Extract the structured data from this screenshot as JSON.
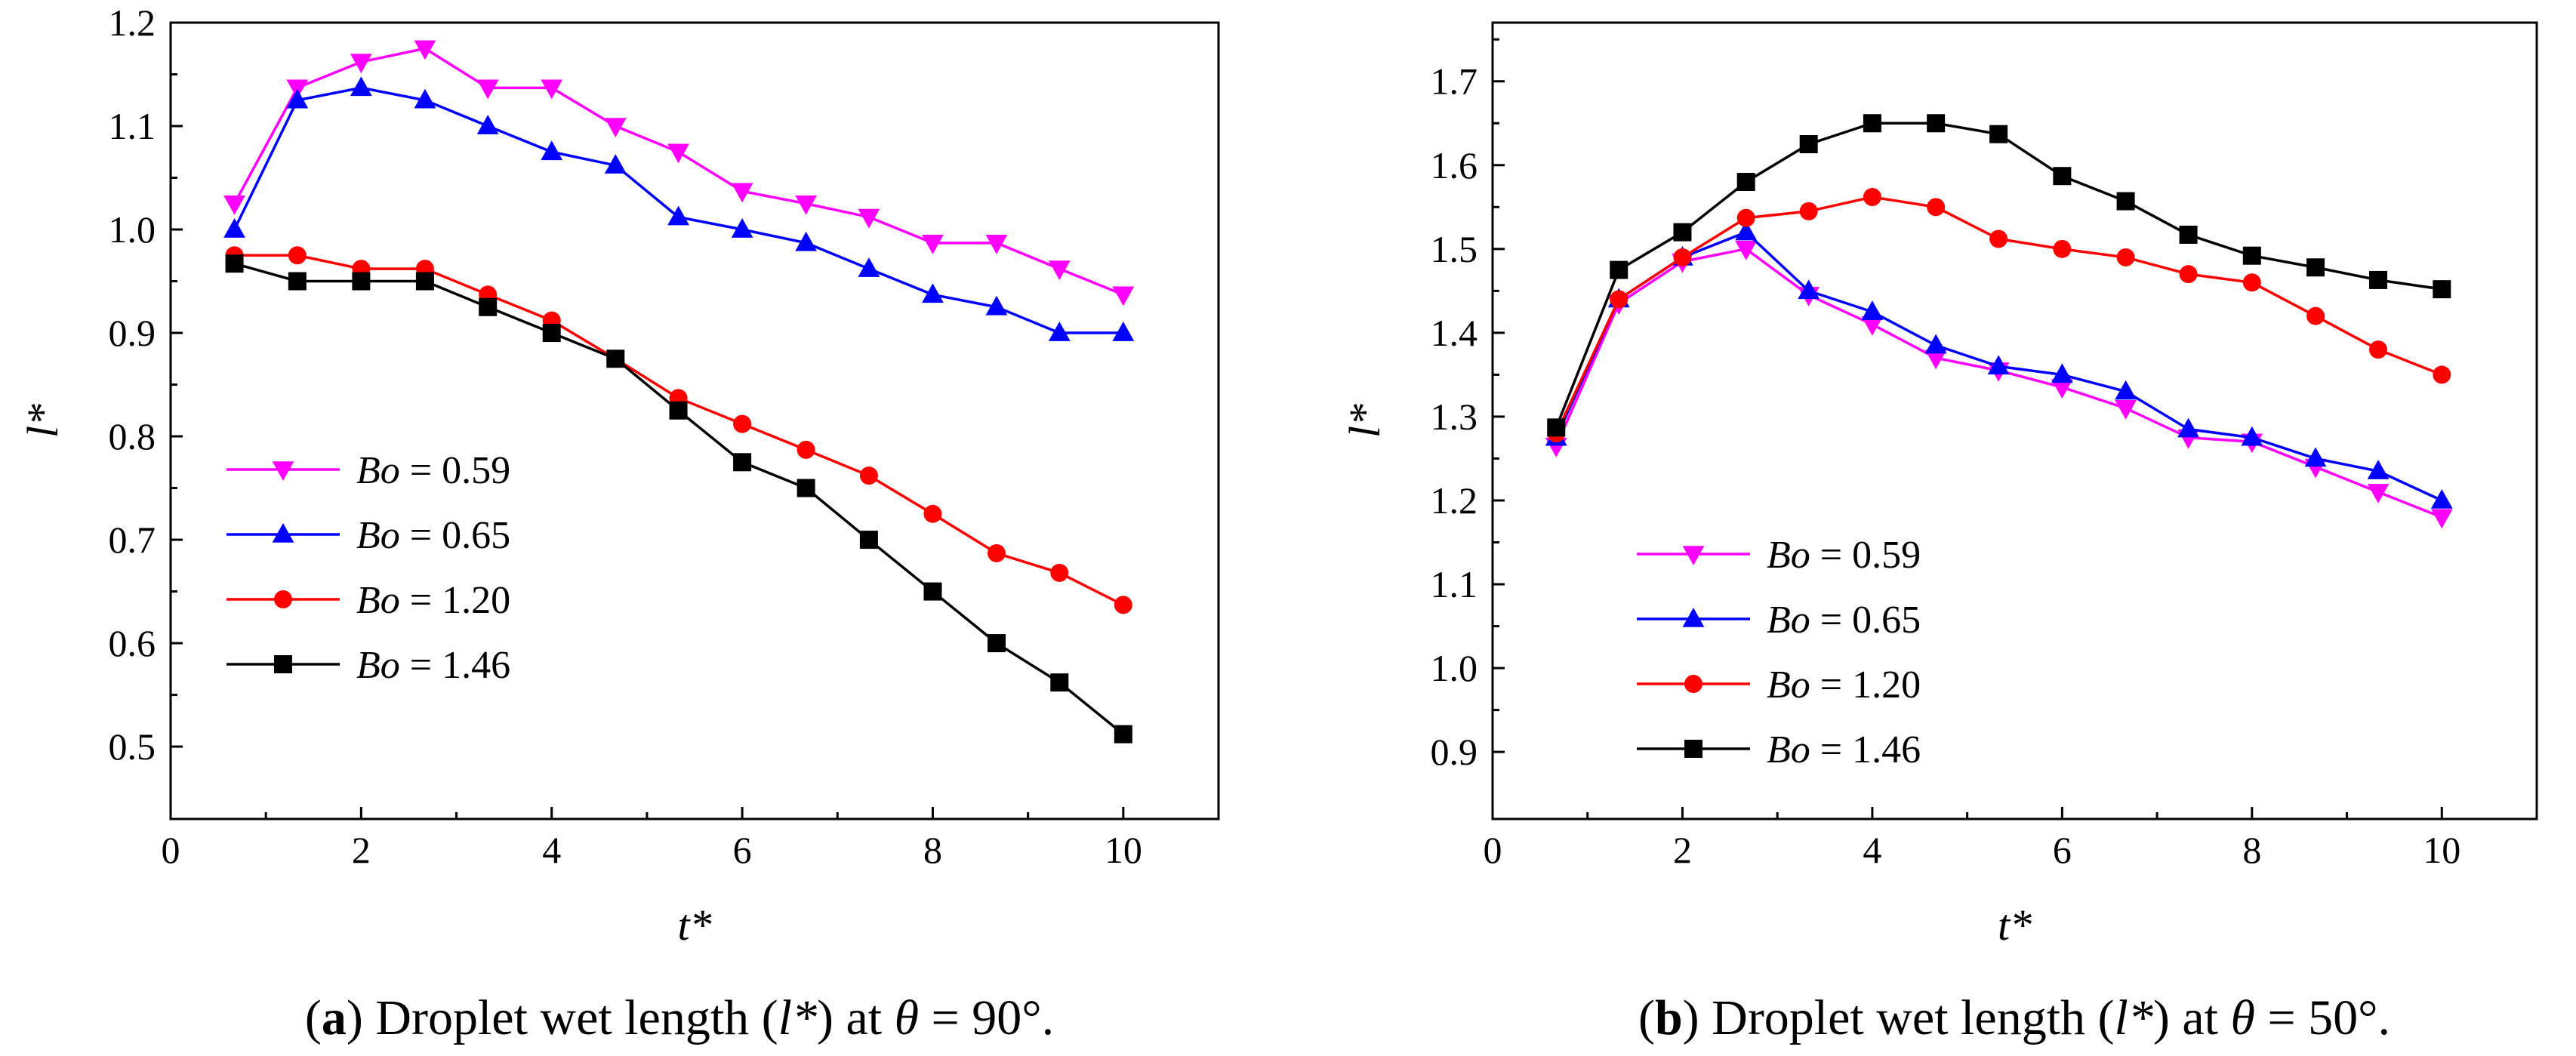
{
  "chart_data": [
    {
      "type": "line",
      "id": "a",
      "caption": {
        "letter": "a",
        "prefix": "Droplet wet length (",
        "var": "l*",
        "mid": ") at ",
        "theta": "θ",
        "rest": " = 90°."
      },
      "xlabel": "t*",
      "ylabel": "l*",
      "xlim": [
        0,
        11
      ],
      "ylim": [
        0.43,
        1.2
      ],
      "xticks": [
        0,
        2,
        4,
        6,
        8,
        10
      ],
      "yticks": [
        0.5,
        0.6,
        0.7,
        0.8,
        0.9,
        1.0,
        1.1,
        1.2
      ],
      "ytick_labels": [
        "0.5",
        "0.6",
        "0.7",
        "0.8",
        "0.9",
        "1.0",
        "1.1",
        "1.2"
      ],
      "legend_position": "bottom-left",
      "series": [
        {
          "name": "Bo = 0.59",
          "name_var": "Bo",
          "name_value": " = 0.59",
          "color": "#ff00ff",
          "marker": "triangle-down",
          "x": [
            0.67,
            1.33,
            2.0,
            2.67,
            3.33,
            4.0,
            4.67,
            5.33,
            6.0,
            6.67,
            7.33,
            8.0,
            8.67,
            9.33,
            10.0
          ],
          "y": [
            1.025,
            1.137,
            1.162,
            1.175,
            1.137,
            1.137,
            1.1,
            1.075,
            1.037,
            1.025,
            1.012,
            0.987,
            0.987,
            0.962,
            0.937
          ]
        },
        {
          "name": "Bo = 0.65",
          "name_var": "Bo",
          "name_value": " = 0.65",
          "color": "#0000ff",
          "marker": "triangle-up",
          "x": [
            0.67,
            1.33,
            2.0,
            2.67,
            3.33,
            4.0,
            4.67,
            5.33,
            6.0,
            6.67,
            7.33,
            8.0,
            8.67,
            9.33,
            10.0
          ],
          "y": [
            1.0,
            1.125,
            1.137,
            1.125,
            1.1,
            1.075,
            1.062,
            1.012,
            1.0,
            0.987,
            0.962,
            0.937,
            0.925,
            0.9,
            0.9
          ]
        },
        {
          "name": "Bo = 1.20",
          "name_var": "Bo",
          "name_value": " = 1.20",
          "color": "#ff0000",
          "marker": "circle",
          "x": [
            0.67,
            1.33,
            2.0,
            2.67,
            3.33,
            4.0,
            4.67,
            5.33,
            6.0,
            6.67,
            7.33,
            8.0,
            8.67,
            9.33,
            10.0
          ],
          "y": [
            0.975,
            0.975,
            0.962,
            0.962,
            0.937,
            0.912,
            0.875,
            0.837,
            0.812,
            0.787,
            0.762,
            0.725,
            0.687,
            0.668,
            0.637
          ]
        },
        {
          "name": "Bo = 1.46",
          "name_var": "Bo",
          "name_value": " = 1.46",
          "color": "#000000",
          "marker": "square",
          "x": [
            0.67,
            1.33,
            2.0,
            2.67,
            3.33,
            4.0,
            4.67,
            5.33,
            6.0,
            6.67,
            7.33,
            8.0,
            8.67,
            9.33,
            10.0
          ],
          "y": [
            0.967,
            0.95,
            0.95,
            0.95,
            0.925,
            0.9,
            0.875,
            0.825,
            0.775,
            0.75,
            0.7,
            0.65,
            0.6,
            0.562,
            0.512
          ]
        }
      ]
    },
    {
      "type": "line",
      "id": "b",
      "caption": {
        "letter": "b",
        "prefix": "Droplet wet length (",
        "var": "l*",
        "mid": ") at ",
        "theta": "θ",
        "rest": " = 50°."
      },
      "xlabel": "t*",
      "ylabel": "l*",
      "xlim": [
        0,
        11
      ],
      "ylim": [
        0.82,
        1.77
      ],
      "xticks": [
        0,
        2,
        4,
        6,
        8,
        10
      ],
      "yticks": [
        0.9,
        1.0,
        1.1,
        1.2,
        1.3,
        1.4,
        1.5,
        1.6,
        1.7
      ],
      "ytick_labels": [
        "0.9",
        "1.0",
        "1.1",
        "1.2",
        "1.3",
        "1.4",
        "1.5",
        "1.6",
        "1.7"
      ],
      "legend_position": "bottom-left",
      "series": [
        {
          "name": "Bo = 0.59",
          "name_var": "Bo",
          "name_value": " = 0.59",
          "color": "#ff00ff",
          "marker": "triangle-down",
          "x": [
            0.67,
            1.33,
            2.0,
            2.67,
            3.33,
            4.0,
            4.67,
            5.33,
            6.0,
            6.67,
            7.33,
            8.0,
            8.67,
            9.33,
            10.0
          ],
          "y": [
            1.265,
            1.435,
            1.485,
            1.5,
            1.445,
            1.41,
            1.37,
            1.355,
            1.335,
            1.31,
            1.275,
            1.27,
            1.24,
            1.21,
            1.18
          ]
        },
        {
          "name": "Bo = 0.65",
          "name_var": "Bo",
          "name_value": " = 0.65",
          "color": "#0000ff",
          "marker": "triangle-up",
          "x": [
            0.67,
            1.33,
            2.0,
            2.67,
            3.33,
            4.0,
            4.67,
            5.33,
            6.0,
            6.67,
            7.33,
            8.0,
            8.67,
            9.33,
            10.0
          ],
          "y": [
            1.275,
            1.44,
            1.49,
            1.52,
            1.45,
            1.425,
            1.385,
            1.36,
            1.35,
            1.33,
            1.285,
            1.275,
            1.25,
            1.235,
            1.2
          ]
        },
        {
          "name": "Bo = 1.20",
          "name_var": "Bo",
          "name_value": " = 1.20",
          "color": "#ff0000",
          "marker": "circle",
          "x": [
            0.67,
            1.33,
            2.0,
            2.67,
            3.33,
            4.0,
            4.67,
            5.33,
            6.0,
            6.67,
            7.33,
            8.0,
            8.67,
            9.33,
            10.0
          ],
          "y": [
            1.28,
            1.44,
            1.49,
            1.537,
            1.545,
            1.562,
            1.55,
            1.512,
            1.5,
            1.49,
            1.47,
            1.46,
            1.42,
            1.38,
            1.35
          ]
        },
        {
          "name": "Bo = 1.46",
          "name_var": "Bo",
          "name_value": " = 1.46",
          "color": "#000000",
          "marker": "square",
          "x": [
            0.67,
            1.33,
            2.0,
            2.67,
            3.33,
            4.0,
            4.67,
            5.33,
            6.0,
            6.67,
            7.33,
            8.0,
            8.67,
            9.33,
            10.0
          ],
          "y": [
            1.287,
            1.475,
            1.52,
            1.58,
            1.625,
            1.65,
            1.65,
            1.637,
            1.587,
            1.557,
            1.517,
            1.492,
            1.478,
            1.463,
            1.452
          ]
        }
      ]
    }
  ]
}
